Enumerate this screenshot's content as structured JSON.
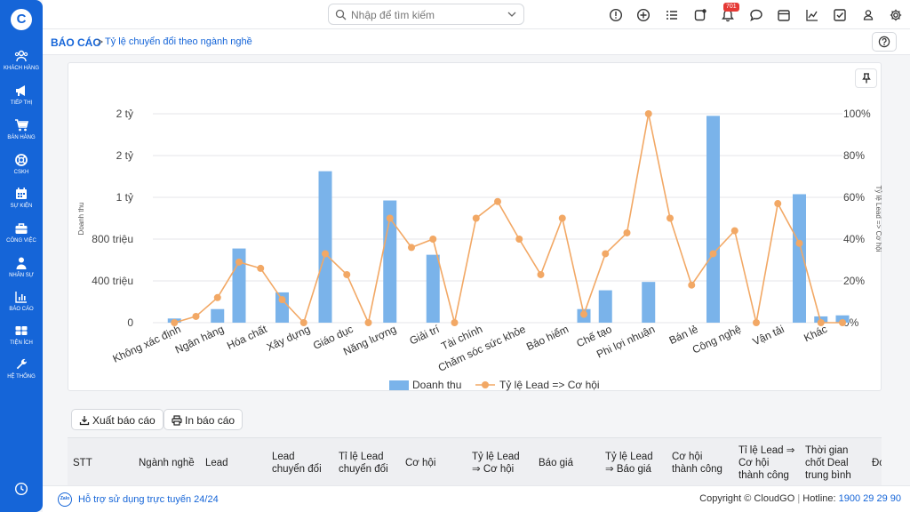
{
  "sidebar": {
    "logo": "C",
    "items": [
      {
        "label": "KHÁCH HÀNG",
        "icon": "customers-icon"
      },
      {
        "label": "TIẾP THỊ",
        "icon": "megaphone-icon"
      },
      {
        "label": "BÁN HÀNG",
        "icon": "cart-icon"
      },
      {
        "label": "CSKH",
        "icon": "lifebuoy-icon"
      },
      {
        "label": "SỰ KIỆN",
        "icon": "calendar-icon"
      },
      {
        "label": "CÔNG VIỆC",
        "icon": "briefcase-icon"
      },
      {
        "label": "NHÂN SỰ",
        "icon": "person-icon"
      },
      {
        "label": "BÁO CÁO",
        "icon": "report-icon"
      },
      {
        "label": "TIỆN ÍCH",
        "icon": "utilities-icon"
      },
      {
        "label": "HỆ THỐNG",
        "icon": "wrench-icon"
      }
    ]
  },
  "topbar": {
    "search_placeholder": "Nhập để tìm kiếm",
    "notification_count": "701"
  },
  "breadcrumb": {
    "root": "BÁO CÁO",
    "separator": ">",
    "page": "Tỷ lệ chuyển đổi theo ngành nghề"
  },
  "actions": {
    "export": "Xuất báo cáo",
    "print": "In báo cáo"
  },
  "table": {
    "headers": [
      [
        "STT"
      ],
      [
        "Ngành nghề"
      ],
      [
        "Lead"
      ],
      [
        "Lead",
        "chuyển đổi"
      ],
      [
        "Tỉ lệ Lead",
        "chuyển đổi"
      ],
      [
        "Cơ hội"
      ],
      [
        "Tỷ lệ Lead",
        "⇒ Cơ hội"
      ],
      [
        "Báo giá"
      ],
      [
        "Tỷ lệ Lead",
        "⇒ Báo giá"
      ],
      [
        "Cơ hội",
        "thành công"
      ],
      [
        "Tỉ lệ Lead ⇒",
        "Cơ hội",
        "thành công"
      ],
      [
        "Thời gian",
        "chốt Deal",
        "trung bình"
      ],
      [
        "Đơ"
      ]
    ]
  },
  "footer": {
    "zalo": "Zalo",
    "support": "Hỗ trợ sử dụng trực tuyến 24/24",
    "copyright": "Copyright © CloudGO",
    "hotline_label": "Hotline:",
    "hotline": "1900 29 29 90"
  },
  "colors": {
    "brand": "#1565d8",
    "bar": "#7ab3ea",
    "line": "#f2a865"
  },
  "chart_data": {
    "type": "bar+line",
    "categories": [
      "Không xác định",
      "Ngân hàng",
      "Hóa chất",
      "Xây dựng",
      "Giáo dục",
      "Năng lượng",
      "Giải trí",
      "Tài chính",
      "Chăm sóc sức khỏe",
      "Bảo hiểm",
      "Chế tạo",
      "Phi lợi nhuận",
      "Bán lẻ",
      "Công nghệ",
      "Vận tải",
      "Khác"
    ],
    "ylabel": "Doanh thu",
    "y2label": "Tỷ lệ Lead => Cơ hội",
    "y_ticks": [
      "0",
      "400 triệu",
      "800 triệu",
      "1 tỷ",
      "2 tỷ",
      "2 tỷ"
    ],
    "y_tick_values": [
      0,
      400,
      800,
      1200,
      1600,
      2000
    ],
    "ylim": [
      0,
      2000
    ],
    "y2_ticks": [
      "0%",
      "20%",
      "40%",
      "60%",
      "80%",
      "100%"
    ],
    "y2_tick_values": [
      0,
      20,
      40,
      60,
      80,
      100
    ],
    "y2lim": [
      0,
      100
    ],
    "legend_position": "bottom",
    "bars": [
      {
        "name": "Doanh thu",
        "x": 0,
        "value": 40
      },
      {
        "name": "Doanh thu",
        "x": 1,
        "value": 130
      },
      {
        "name": "Doanh thu",
        "x": 1.5,
        "value": 710
      },
      {
        "name": "Doanh thu",
        "x": 2.5,
        "value": 290
      },
      {
        "name": "Doanh thu",
        "x": 3.5,
        "value": 1450
      },
      {
        "name": "Doanh thu",
        "x": 5,
        "value": 1170
      },
      {
        "name": "Doanh thu",
        "x": 6,
        "value": 650
      },
      {
        "name": "Doanh thu",
        "x": 9.5,
        "value": 130
      },
      {
        "name": "Doanh thu",
        "x": 10,
        "value": 310
      },
      {
        "name": "Doanh thu",
        "x": 11,
        "value": 390
      },
      {
        "name": "Doanh thu",
        "x": 12.5,
        "value": 1980
      },
      {
        "name": "Doanh thu",
        "x": 14.5,
        "value": 1230
      },
      {
        "name": "Doanh thu",
        "x": 15,
        "value": 60
      },
      {
        "name": "Doanh thu",
        "x": 15.5,
        "value": 70
      }
    ],
    "series": [
      {
        "name": "Doanh thu",
        "kind": "bar"
      },
      {
        "name": "Tỷ lệ Lead => Cơ hội",
        "kind": "line",
        "x": [
          0,
          0.5,
          1,
          1.5,
          2,
          2.5,
          3,
          3.5,
          4,
          4.5,
          5,
          5.5,
          6,
          6.5,
          7,
          7.5,
          8,
          8.5,
          9,
          9.5,
          10,
          10.5,
          11,
          11.5,
          12,
          12.5,
          13,
          13.5,
          14,
          14.5,
          15,
          15.5
        ],
        "values": [
          0,
          3,
          12,
          29,
          26,
          11,
          0,
          33,
          23,
          0,
          50,
          36,
          40,
          0,
          50,
          58,
          40,
          23,
          50,
          4,
          33,
          43,
          100,
          50,
          18,
          33,
          44,
          0,
          57,
          38,
          0,
          0
        ]
      }
    ]
  }
}
